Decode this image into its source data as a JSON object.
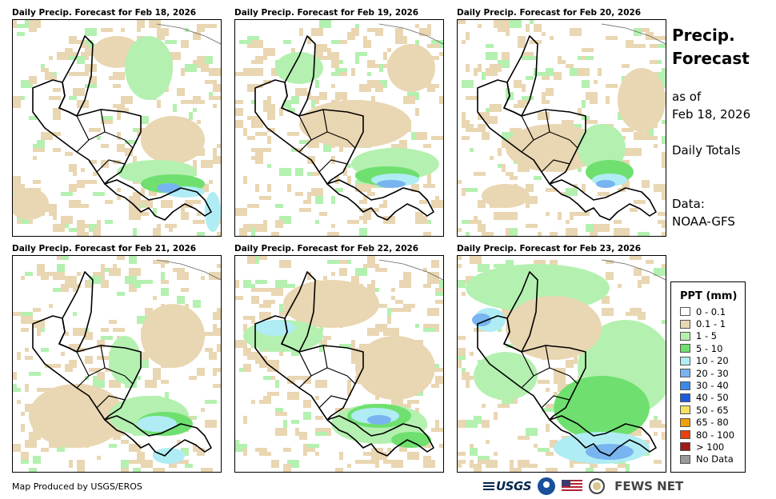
{
  "panels": [
    {
      "title": "Daily Precip. Forecast for Feb 18, 2026",
      "date": "Feb 18, 2026"
    },
    {
      "title": "Daily Precip. Forecast for Feb 19, 2026",
      "date": "Feb 19, 2026"
    },
    {
      "title": "Daily Precip. Forecast for Feb 20, 2026",
      "date": "Feb 20, 2026"
    },
    {
      "title": "Daily Precip. Forecast for Feb 21, 2026",
      "date": "Feb 21, 2026"
    },
    {
      "title": "Daily Precip. Forecast for Feb 22, 2026",
      "date": "Feb 22, 2026"
    },
    {
      "title": "Daily Precip. Forecast for Feb 23, 2026",
      "date": "Feb 23, 2026"
    }
  ],
  "side": {
    "title_line1": "Precip.",
    "title_line2": "Forecast",
    "asof_line1": "as of",
    "asof_line2": "Feb 18, 2026",
    "totals": "Daily Totals",
    "data_line1": "Data:",
    "data_line2": "NOAA-GFS"
  },
  "legend": {
    "title": "PPT (mm)",
    "items": [
      {
        "label": "0 - 0.1",
        "color": "#ffffff"
      },
      {
        "label": "0.1 - 1",
        "color": "#e9d6b2"
      },
      {
        "label": "1 - 5",
        "color": "#b4f0b0"
      },
      {
        "label": "5 - 10",
        "color": "#6fe06f"
      },
      {
        "label": "10 - 20",
        "color": "#b0ecf4"
      },
      {
        "label": "20 - 30",
        "color": "#78b4f0"
      },
      {
        "label": "30 - 40",
        "color": "#3c88e8"
      },
      {
        "label": "40 - 50",
        "color": "#1e5adc"
      },
      {
        "label": "50 - 65",
        "color": "#f8e060"
      },
      {
        "label": "65 - 80",
        "color": "#f0a000"
      },
      {
        "label": "80 - 100",
        "color": "#e84010"
      },
      {
        "label": "> 100",
        "color": "#a01818"
      },
      {
        "label": "No Data",
        "color": "#9a9a9a"
      }
    ]
  },
  "footer": {
    "credit": "Map Produced by USGS/EROS",
    "usgs_logo": "USGS",
    "fews_logo": "FEWS NET"
  }
}
